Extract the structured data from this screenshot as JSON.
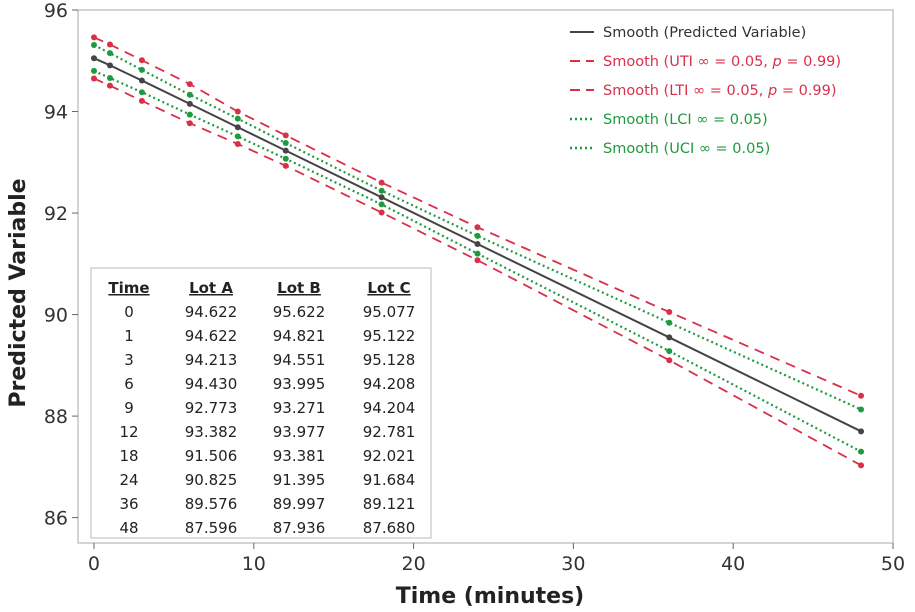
{
  "chart_data": {
    "type": "line",
    "xlabel": "Time (minutes)",
    "ylabel": "Predicted Variable",
    "xlim": [
      -1,
      50
    ],
    "ylim": [
      85.5,
      96
    ],
    "xticks": [
      0,
      10,
      20,
      30,
      40,
      50
    ],
    "yticks": [
      86,
      88,
      90,
      92,
      94,
      96
    ],
    "x_tick_labels": [
      "0",
      "10",
      "20",
      "30",
      "40",
      "50"
    ],
    "y_tick_labels": [
      "86",
      "88",
      "90",
      "92",
      "94",
      "96"
    ],
    "legend_placement": "top-right",
    "grid": false,
    "x": [
      0,
      1,
      3,
      6,
      9,
      12,
      18,
      24,
      36,
      48
    ],
    "series": [
      {
        "name": "Smooth (Predicted Variable)",
        "legend_parts": [
          {
            "t": "Smooth (Predicted Variable)",
            "i": false
          }
        ],
        "color": "#444444",
        "style": "solid",
        "values": [
          95.05,
          94.91,
          94.61,
          94.15,
          93.69,
          93.23,
          92.31,
          91.39,
          89.55,
          87.7
        ]
      },
      {
        "name": "Smooth (UTI ∞ = 0.05, p = 0.99)",
        "legend_parts": [
          {
            "t": "Smooth (UTI ∞ = 0.05, ",
            "i": false
          },
          {
            "t": "p",
            "i": true
          },
          {
            "t": " = 0.99)",
            "i": false
          }
        ],
        "color": "#d9304a",
        "style": "dashed",
        "values": [
          95.46,
          95.32,
          95.01,
          94.54,
          94.0,
          93.53,
          92.6,
          91.72,
          90.05,
          88.4
        ]
      },
      {
        "name": "Smooth (LTI ∞ = 0.05, p = 0.99)",
        "legend_parts": [
          {
            "t": "Smooth (LTI ∞ = 0.05, ",
            "i": false
          },
          {
            "t": "p",
            "i": true
          },
          {
            "t": " = 0.99)",
            "i": false
          }
        ],
        "color": "#d9304a",
        "style": "dashed",
        "values": [
          94.65,
          94.51,
          94.21,
          93.77,
          93.36,
          92.93,
          92.01,
          91.07,
          89.1,
          87.03
        ]
      },
      {
        "name": "Smooth (LCI ∞ = 0.05)",
        "legend_parts": [
          {
            "t": "Smooth (LCI ∞ = 0.05)",
            "i": false
          }
        ],
        "color": "#1f9a3e",
        "style": "dotted",
        "values": [
          95.31,
          95.15,
          94.82,
          94.33,
          93.86,
          93.38,
          92.44,
          91.55,
          89.84,
          88.13
        ]
      },
      {
        "name": "Smooth (UCI ∞ = 0.05)",
        "legend_parts": [
          {
            "t": "Smooth (UCI ∞ = 0.05)",
            "i": false
          }
        ],
        "color": "#1f9a3e",
        "style": "dotted",
        "values": [
          94.8,
          94.66,
          94.38,
          93.94,
          93.51,
          93.07,
          92.17,
          91.2,
          89.28,
          87.3
        ]
      }
    ],
    "table": {
      "headers": [
        "Time",
        "Lot A",
        "Lot B",
        "Lot C"
      ],
      "rows": [
        [
          "0",
          "94.622",
          "95.622",
          "95.077"
        ],
        [
          "1",
          "94.622",
          "94.821",
          "95.122"
        ],
        [
          "3",
          "94.213",
          "94.551",
          "95.128"
        ],
        [
          "6",
          "94.430",
          "93.995",
          "94.208"
        ],
        [
          "9",
          "92.773",
          "93.271",
          "94.204"
        ],
        [
          "12",
          "93.382",
          "93.977",
          "92.781"
        ],
        [
          "18",
          "91.506",
          "93.381",
          "92.021"
        ],
        [
          "24",
          "90.825",
          "91.395",
          "91.684"
        ],
        [
          "36",
          "89.576",
          "89.997",
          "89.121"
        ],
        [
          "48",
          "87.596",
          "87.936",
          "87.680"
        ]
      ]
    }
  }
}
